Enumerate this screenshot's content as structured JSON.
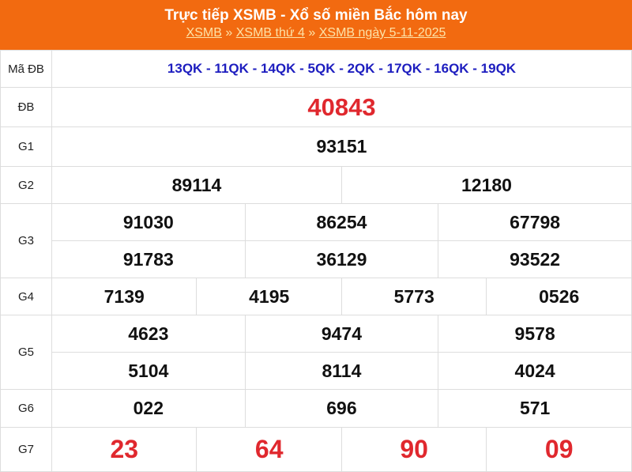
{
  "header": {
    "title": "Trực tiếp XSMB - Xổ số miền Bắc hôm nay",
    "breadcrumb": [
      "XSMB",
      "XSMB thứ 4",
      "XSMB ngày 5-11-2025"
    ],
    "separator": "»"
  },
  "colors": {
    "header_bg": "#f26a10",
    "special": "#e0282e",
    "code": "#1d1dbf"
  },
  "rows": {
    "ma_db": {
      "label": "Mã ĐB",
      "value": "13QK - 11QK - 14QK - 5QK - 2QK - 17QK - 16QK - 19QK"
    },
    "db": {
      "label": "ĐB",
      "values": [
        "40843"
      ]
    },
    "g1": {
      "label": "G1",
      "values": [
        "93151"
      ]
    },
    "g2": {
      "label": "G2",
      "values": [
        "89114",
        "12180"
      ]
    },
    "g3": {
      "label": "G3",
      "values": [
        "91030",
        "86254",
        "67798",
        "91783",
        "36129",
        "93522"
      ]
    },
    "g4": {
      "label": "G4",
      "values": [
        "7139",
        "4195",
        "5773",
        "0526"
      ]
    },
    "g5": {
      "label": "G5",
      "values": [
        "4623",
        "9474",
        "9578",
        "5104",
        "8114",
        "4024"
      ]
    },
    "g6": {
      "label": "G6",
      "values": [
        "022",
        "696",
        "571"
      ]
    },
    "g7": {
      "label": "G7",
      "values": [
        "23",
        "64",
        "90",
        "09"
      ]
    }
  }
}
